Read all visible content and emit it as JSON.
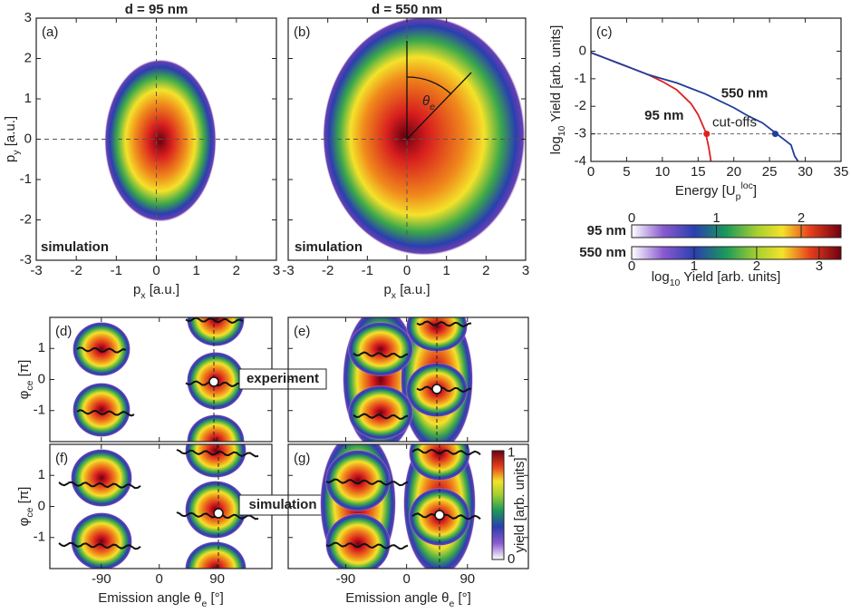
{
  "chart_data": [
    {
      "type": "heatmap",
      "panel": "(a)",
      "title": "d = 95 nm",
      "title_color": "#e02020",
      "annotation": "simulation",
      "xlabel": [
        "p",
        {
          "sub": "x"
        },
        " [a.u.]"
      ],
      "ylabel": [
        "p",
        {
          "sub": "y"
        },
        " [a.u.]"
      ],
      "xlim": [
        -3,
        3
      ],
      "ylim": [
        -3,
        3
      ],
      "xticks": [
        -3,
        -2,
        -1,
        0,
        1,
        2,
        3
      ],
      "yticks": [
        -3,
        -2,
        -1,
        0,
        1,
        2,
        3
      ]
    },
    {
      "type": "heatmap",
      "panel": "(b)",
      "title": "d = 550 nm",
      "title_color": "#1f3d99",
      "annotation": "simulation",
      "angle_label": [
        "θ",
        {
          "sub": "e"
        }
      ],
      "xlabel": [
        "p",
        {
          "sub": "x"
        },
        " [a.u.]"
      ],
      "xlim": [
        -3,
        3
      ],
      "ylim": [
        -3,
        3
      ],
      "xticks": [
        -3,
        -2,
        -1,
        0,
        1,
        2,
        3
      ],
      "yticks": [
        -3,
        -2,
        -1,
        0,
        1,
        2,
        3
      ]
    },
    {
      "type": "line",
      "panel": "(c)",
      "xlabel": [
        "Energy [",
        "U",
        {
          "sub": "p"
        },
        {
          "sup": "loc"
        },
        "]"
      ],
      "ylabel": [
        "log",
        {
          "sub": "10"
        },
        " Yield [arb. units]"
      ],
      "xlim": [
        0,
        35
      ],
      "ylim": [
        -4,
        1.2
      ],
      "xticks": [
        0,
        5,
        10,
        15,
        20,
        25,
        30,
        35
      ],
      "yticks": [
        -4,
        -3,
        -2,
        -1,
        0
      ],
      "hline": -3,
      "cutoffs": {
        "label": "cut-offs",
        "x": [
          16.2,
          25.8
        ],
        "y": [
          -3,
          -3
        ]
      },
      "series": [
        {
          "name": "95 nm",
          "color": "#e02020",
          "x": [
            0,
            2,
            4,
            6,
            8,
            10,
            12,
            14,
            15,
            16,
            16.5,
            16.8
          ],
          "values": [
            -0.05,
            -0.25,
            -0.45,
            -0.65,
            -0.85,
            -1.1,
            -1.4,
            -1.9,
            -2.3,
            -2.9,
            -3.5,
            -4
          ]
        },
        {
          "name": "550 nm",
          "color": "#1f3d99",
          "x": [
            0,
            2,
            4,
            6,
            8,
            10,
            12,
            14,
            16,
            18,
            20,
            22,
            24,
            26,
            27,
            28,
            28.5,
            29
          ],
          "values": [
            -0.05,
            -0.25,
            -0.45,
            -0.65,
            -0.85,
            -1.0,
            -1.15,
            -1.35,
            -1.55,
            -1.8,
            -2.05,
            -2.35,
            -2.6,
            -3.0,
            -3.2,
            -3.4,
            -3.8,
            -4
          ]
        }
      ]
    },
    {
      "type": "colorbar",
      "label": [
        "log",
        {
          "sub": "10"
        },
        " Yield [arb. units]"
      ],
      "bars": [
        {
          "name": "95 nm",
          "color": "#e02020",
          "lim": [
            0,
            2.47
          ],
          "ticks": [
            0,
            1,
            2
          ]
        },
        {
          "name": "550 nm",
          "color": "#1f3d99",
          "lim": [
            0,
            3.35
          ],
          "ticks": [
            0,
            1,
            2,
            3
          ]
        }
      ]
    },
    {
      "type": "heatmap",
      "panel": "(d)",
      "annotation": "experiment",
      "ylabel": [
        "φ",
        {
          "sub": "ce"
        },
        " [π]"
      ],
      "xlim": [
        -170,
        175
      ],
      "ylim": [
        -2,
        2
      ],
      "xticks": [
        -90,
        0,
        90
      ],
      "yticks": [
        -1,
        0,
        1
      ]
    },
    {
      "type": "heatmap",
      "panel": "(e)",
      "xlim": [
        -175,
        180
      ],
      "ylim": [
        -2,
        2
      ],
      "xticks": [
        -90,
        0,
        90
      ],
      "yticks": [
        -1,
        0,
        1
      ]
    },
    {
      "type": "heatmap",
      "panel": "(f)",
      "annotation": "simulation",
      "ylabel": [
        "φ",
        {
          "sub": "ce"
        },
        " [π]"
      ],
      "xlabel": [
        "Emission angle θ",
        {
          "sub": "e"
        },
        " [°]"
      ],
      "xlim": [
        -170,
        175
      ],
      "ylim": [
        -2,
        2
      ],
      "xticks": [
        -90,
        0,
        90
      ],
      "yticks": [
        -1,
        0,
        1
      ]
    },
    {
      "type": "heatmap",
      "panel": "(g)",
      "xlabel": [
        "Emission angle θ",
        {
          "sub": "e"
        },
        " [°]"
      ],
      "xlim": [
        -175,
        180
      ],
      "ylim": [
        -2,
        2
      ],
      "xticks": [
        -90,
        0,
        90
      ],
      "yticks": [
        -1,
        0,
        1
      ],
      "colorbar": {
        "label": "yield [arb. units]",
        "lim": [
          0,
          1.02
        ],
        "ticks": [
          0,
          1
        ]
      }
    }
  ]
}
